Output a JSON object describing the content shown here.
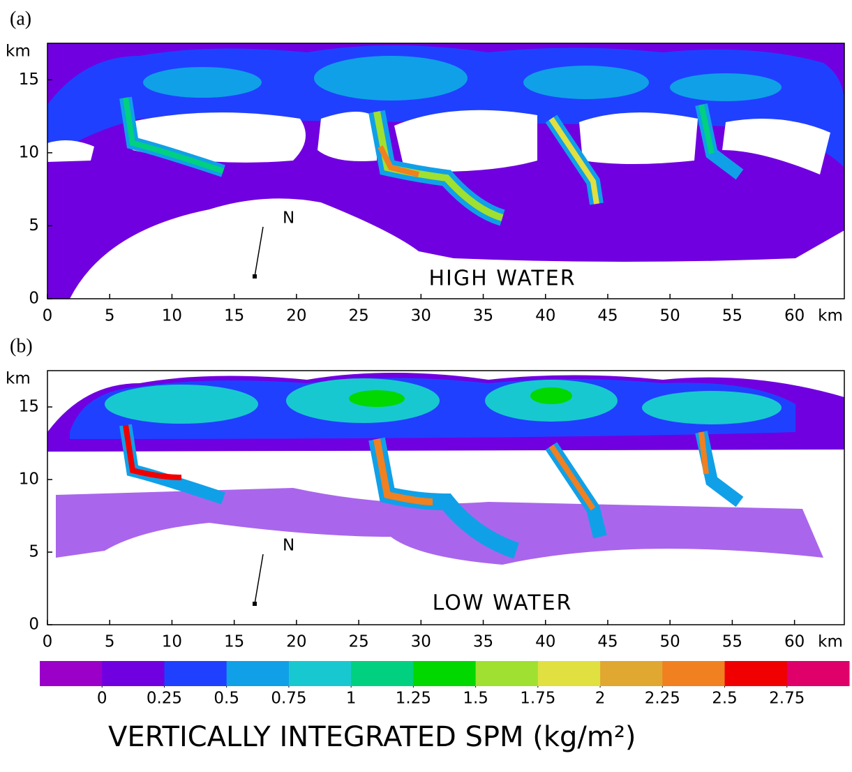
{
  "chart_data": [
    {
      "type": "map",
      "panel_label": "(a)",
      "annotation": "HIGH WATER",
      "north_label": "N",
      "x_unit": "km",
      "y_unit": "km",
      "xlim": [
        0,
        64
      ],
      "ylim": [
        0,
        17.5
      ],
      "xticks": [
        0,
        5,
        10,
        15,
        20,
        25,
        30,
        35,
        40,
        45,
        50,
        55,
        60
      ],
      "yticks": [
        0,
        5,
        10,
        15
      ]
    },
    {
      "type": "map",
      "panel_label": "(b)",
      "annotation": "LOW WATER",
      "north_label": "N",
      "x_unit": "km",
      "y_unit": "km",
      "xlim": [
        0,
        64
      ],
      "ylim": [
        0,
        17.5
      ],
      "xticks": [
        0,
        5,
        10,
        15,
        20,
        25,
        30,
        35,
        40,
        45,
        50,
        55,
        60
      ],
      "yticks": [
        0,
        5,
        10,
        15
      ]
    }
  ],
  "colorbar": {
    "title": "VERTICALLY INTEGRATED SPM (kg/m²)",
    "clim": [
      -0.25,
      3.0
    ],
    "colors": [
      "#9b00c8",
      "#7000e0",
      "#2040ff",
      "#10a0e8",
      "#18c8d0",
      "#00d080",
      "#00d800",
      "#a0e030",
      "#e0e040",
      "#e0a830",
      "#f08020",
      "#f00000",
      "#e0006a"
    ],
    "ticks": [
      0,
      0.25,
      0.5,
      0.75,
      1,
      1.25,
      1.5,
      1.75,
      2,
      2.25,
      2.5,
      2.75
    ]
  }
}
